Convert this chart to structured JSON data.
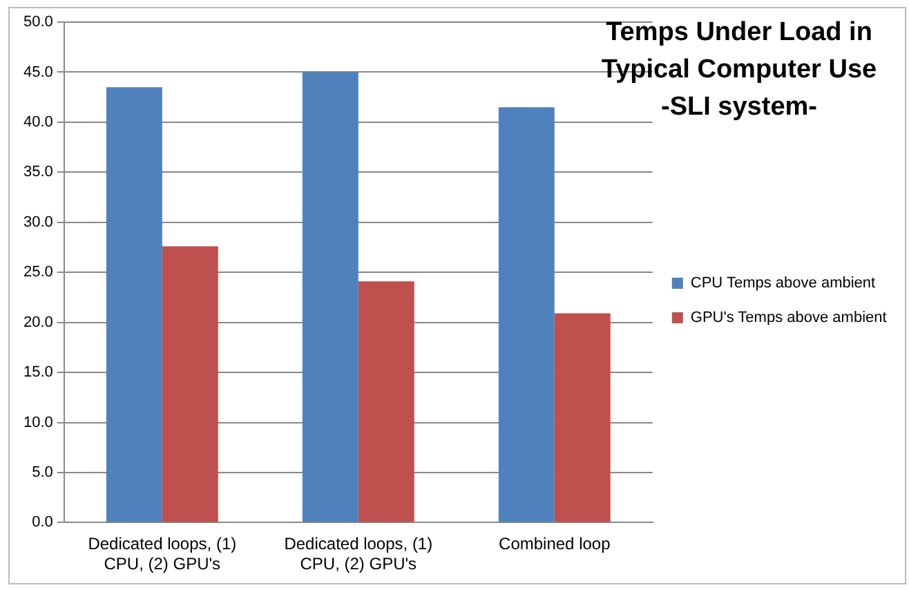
{
  "chart_data": {
    "type": "bar",
    "title": "Temps Under Load in Typical Computer Use -SLI system-",
    "categories": [
      "Dedicated loops, (1) CPU, (2) GPU's",
      "Dedicated loops, (1) CPU, (2) GPU's",
      "Combined loop"
    ],
    "series": [
      {
        "name": "CPU Temps above ambient",
        "color": "#4f81bd",
        "values": [
          43.5,
          45.0,
          41.5
        ]
      },
      {
        "name": "GPU's Temps above ambient",
        "color": "#c0504d",
        "values": [
          27.6,
          24.1,
          20.9
        ]
      }
    ],
    "ylim": [
      0,
      50
    ],
    "yticks": [
      {
        "value": 0,
        "label": "0.0"
      },
      {
        "value": 5,
        "label": "5.0"
      },
      {
        "value": 10,
        "label": "10.0"
      },
      {
        "value": 15,
        "label": "15.0"
      },
      {
        "value": 20,
        "label": "20.0"
      },
      {
        "value": 25,
        "label": "25.0"
      },
      {
        "value": 30,
        "label": "30.0"
      },
      {
        "value": 35,
        "label": "35.0"
      },
      {
        "value": 40,
        "label": "40.0"
      },
      {
        "value": 45,
        "label": "45.0"
      },
      {
        "value": 50,
        "label": "50.0"
      }
    ],
    "grid": "y",
    "legend": "right"
  }
}
